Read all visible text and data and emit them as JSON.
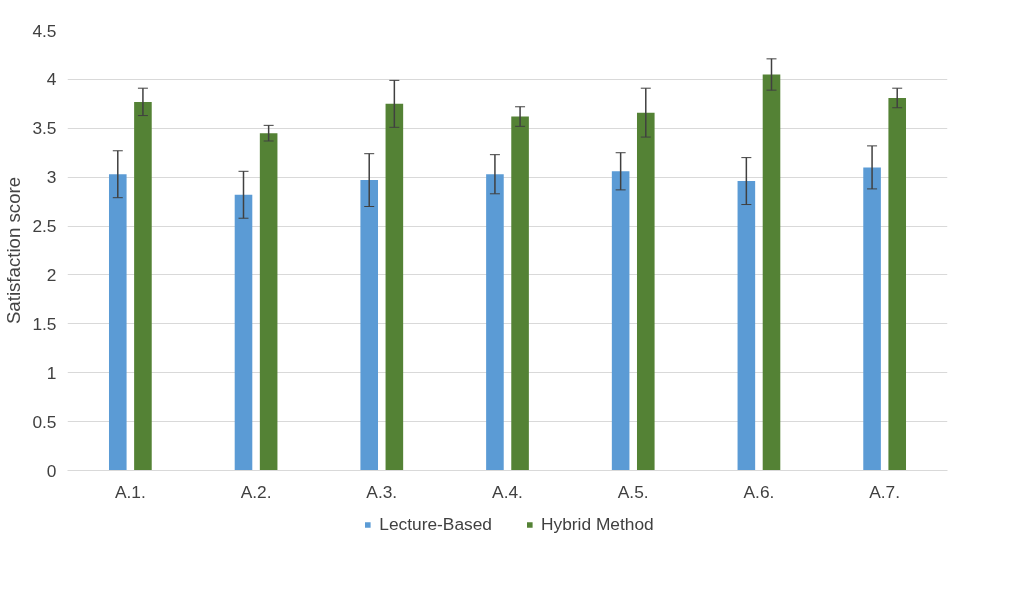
{
  "chart_data": {
    "type": "bar",
    "ylabel": "Satisfaction score",
    "categories": [
      "A.1.",
      "A.2.",
      "A.3.",
      "A.4.",
      "A.5.",
      "A.6.",
      "A.7."
    ],
    "series": [
      {
        "name": "Lecture-Based",
        "color": "#5b9bd5",
        "values": [
          3.03,
          2.82,
          2.97,
          3.03,
          3.06,
          2.96,
          3.1
        ],
        "errors": [
          0.24,
          0.24,
          0.27,
          0.2,
          0.19,
          0.24,
          0.22
        ]
      },
      {
        "name": "Hybrid Method",
        "color": "#548235",
        "values": [
          3.77,
          3.45,
          3.75,
          3.62,
          3.66,
          4.05,
          3.81
        ],
        "errors": [
          0.14,
          0.08,
          0.24,
          0.1,
          0.25,
          0.16,
          0.1
        ]
      }
    ],
    "ylim": [
      0,
      4.5
    ],
    "yticks": [
      0,
      0.5,
      1,
      1.5,
      2,
      2.5,
      3,
      3.5,
      4,
      4.5
    ],
    "grid": "y",
    "legend": "bottom"
  }
}
